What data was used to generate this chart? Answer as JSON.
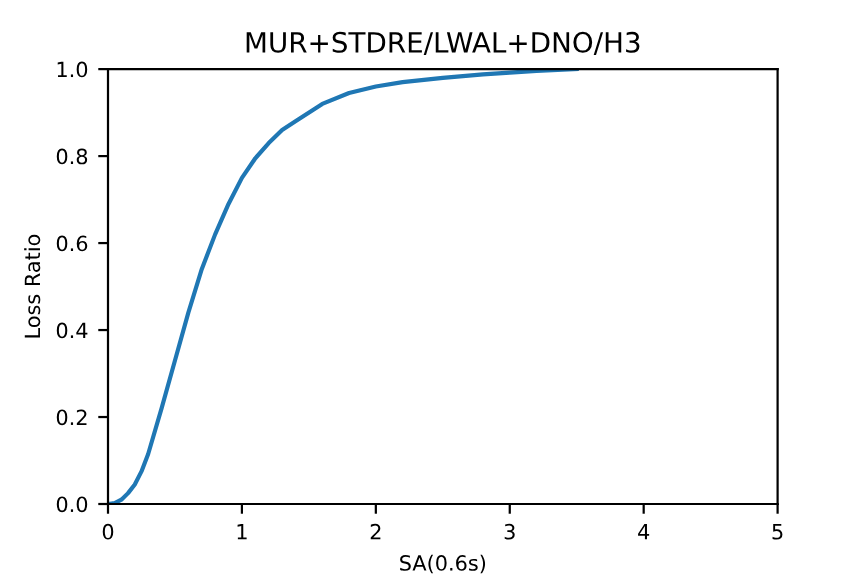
{
  "chart_data": {
    "type": "line",
    "title": "MUR+STDRE/LWAL+DNO/H3",
    "xlabel": "SA(0.6s)",
    "ylabel": "Loss Ratio",
    "x": [
      0.0,
      0.05,
      0.1,
      0.15,
      0.2,
      0.25,
      0.3,
      0.4,
      0.5,
      0.6,
      0.7,
      0.8,
      0.9,
      1.0,
      1.1,
      1.2,
      1.3,
      1.4,
      1.6,
      1.8,
      2.0,
      2.2,
      2.5,
      2.8,
      3.0,
      3.2,
      3.5
    ],
    "series": [
      {
        "color": "#1f77b4",
        "values": [
          0.0,
          0.002,
          0.01,
          0.025,
          0.045,
          0.075,
          0.115,
          0.22,
          0.33,
          0.44,
          0.54,
          0.62,
          0.69,
          0.75,
          0.795,
          0.83,
          0.86,
          0.88,
          0.92,
          0.945,
          0.96,
          0.97,
          0.98,
          0.988,
          0.992,
          0.996,
          1.0
        ]
      }
    ],
    "xlim": [
      0,
      5
    ],
    "ylim": [
      0,
      1.0
    ],
    "xticks": [
      0,
      1,
      2,
      3,
      4,
      5
    ],
    "yticks": [
      {
        "value": 0,
        "label": "0.0"
      },
      {
        "value": 0.2,
        "label": "0.2"
      },
      {
        "value": 0.4,
        "label": "0.4"
      },
      {
        "value": 0.6,
        "label": "0.6"
      },
      {
        "value": 0.8,
        "label": "0.8"
      },
      {
        "value": 1.0,
        "label": "1.0"
      }
    ],
    "grid": false,
    "legend": false
  }
}
